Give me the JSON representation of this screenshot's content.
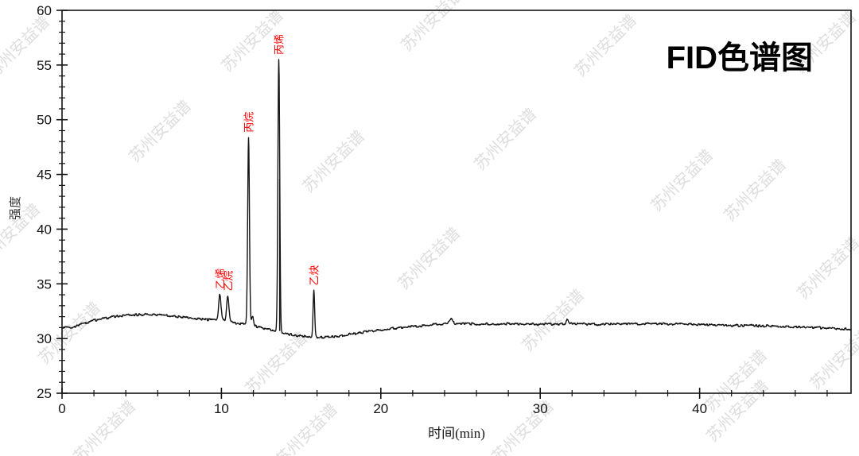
{
  "watermark_text": "苏州安益谱",
  "chart_data": {
    "type": "line",
    "title": "FID色谱图",
    "xlabel": "时间(min)",
    "ylabel": "强度",
    "xlim": [
      0,
      49.5
    ],
    "ylim": [
      25,
      60
    ],
    "x_major_ticks": [
      0,
      10,
      20,
      30,
      40
    ],
    "x_minor_tick_step": 2,
    "y_major_ticks": [
      25,
      30,
      35,
      40,
      45,
      50,
      55,
      60
    ],
    "y_minor_tick_step": 1,
    "grid": false,
    "legend": false,
    "trace_color": "#141414",
    "peak_label_color": "#ff0000",
    "peaks": [
      {
        "name": "乙烯",
        "time_min": 9.9,
        "apex_intensity": 34.1,
        "sigma": 0.07
      },
      {
        "name": "乙烷",
        "time_min": 10.4,
        "apex_intensity": 33.9,
        "sigma": 0.07
      },
      {
        "name": "丙烷",
        "time_min": 11.7,
        "apex_intensity": 48.4,
        "sigma": 0.055
      },
      {
        "name": "丙烯",
        "time_min": 13.6,
        "apex_intensity": 55.5,
        "sigma": 0.055,
        "thick_below": 44.6
      },
      {
        "name": "乙炔",
        "time_min": 15.8,
        "apex_intensity": 34.4,
        "sigma": 0.05
      }
    ],
    "minor_features": [
      {
        "time_min": 11.95,
        "height": 0.85,
        "sigma": 0.07
      },
      {
        "time_min": 24.4,
        "height": 0.4,
        "sigma": 0.1
      },
      {
        "time_min": 31.7,
        "height": 0.45,
        "sigma": 0.06
      }
    ],
    "baseline_points": [
      [
        0,
        31.0
      ],
      [
        0.6,
        31.05
      ],
      [
        1.2,
        31.3
      ],
      [
        2,
        31.65
      ],
      [
        3,
        31.95
      ],
      [
        4,
        32.15
      ],
      [
        5,
        32.2
      ],
      [
        6,
        32.15
      ],
      [
        7,
        32.05
      ],
      [
        8,
        31.9
      ],
      [
        9,
        31.75
      ],
      [
        9.6,
        31.7
      ],
      [
        10.15,
        31.7
      ],
      [
        10.8,
        31.4
      ],
      [
        11.5,
        31.3
      ],
      [
        12.5,
        31.0
      ],
      [
        13.5,
        30.65
      ],
      [
        14.5,
        30.3
      ],
      [
        15.5,
        30.15
      ],
      [
        16.5,
        30.1
      ],
      [
        17.5,
        30.25
      ],
      [
        18.5,
        30.5
      ],
      [
        19.5,
        30.7
      ],
      [
        20.5,
        30.9
      ],
      [
        22,
        31.1
      ],
      [
        23.5,
        31.3
      ],
      [
        25,
        31.4
      ],
      [
        26,
        31.35
      ],
      [
        28,
        31.35
      ],
      [
        30,
        31.3
      ],
      [
        32,
        31.35
      ],
      [
        34,
        31.3
      ],
      [
        36,
        31.35
      ],
      [
        38,
        31.35
      ],
      [
        40,
        31.25
      ],
      [
        42,
        31.2
      ],
      [
        44,
        31.15
      ],
      [
        46,
        31.05
      ],
      [
        48,
        30.95
      ],
      [
        49.5,
        30.85
      ]
    ]
  }
}
